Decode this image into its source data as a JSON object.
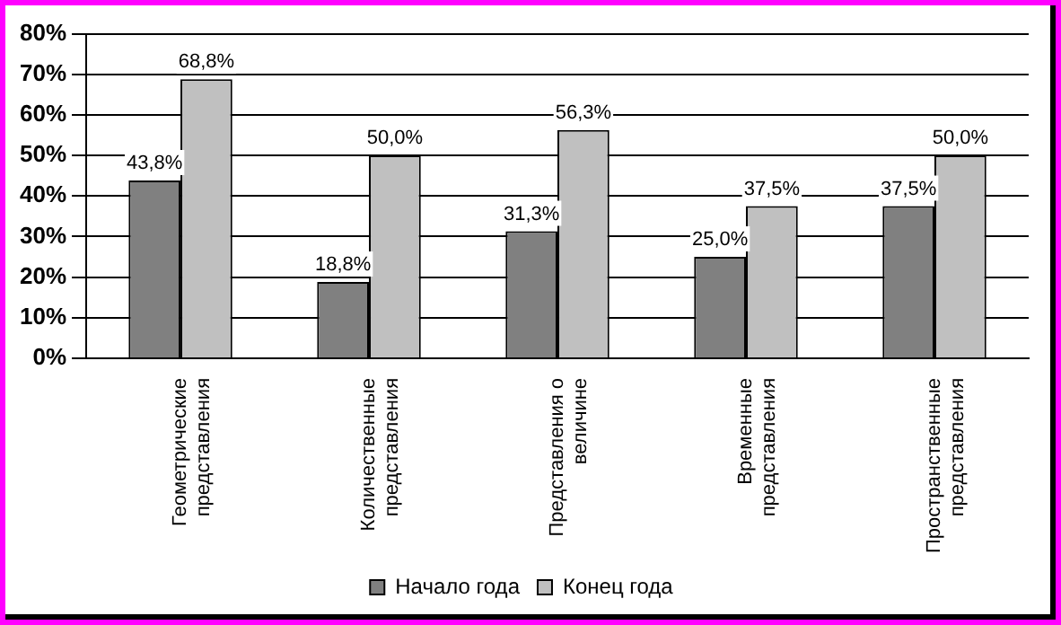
{
  "chart_data": {
    "type": "bar",
    "categories": [
      "Геометрические представления",
      "Количественные представления",
      "Представления о величине",
      "Временные представления",
      "Пространственные представления"
    ],
    "series": [
      {
        "name": "Начало года",
        "color": "#808080",
        "values": [
          43.8,
          18.8,
          31.3,
          25.0,
          37.5
        ],
        "value_labels": [
          "43,8%",
          "18,8%",
          "31,3%",
          "25,0%",
          "37,5%"
        ]
      },
      {
        "name": "Конец года",
        "color": "#c0c0c0",
        "values": [
          68.8,
          50.0,
          56.3,
          37.5,
          50.0
        ],
        "value_labels": [
          "68,8%",
          "50,0%",
          "56,3%",
          "37,5%",
          "50,0%"
        ]
      }
    ],
    "ylim": [
      0,
      80
    ],
    "yticks": [
      {
        "value": 0,
        "label": "0%"
      },
      {
        "value": 10,
        "label": "10%"
      },
      {
        "value": 20,
        "label": "20%"
      },
      {
        "value": 30,
        "label": "30%"
      },
      {
        "value": 40,
        "label": "40%"
      },
      {
        "value": 50,
        "label": "50%"
      },
      {
        "value": 60,
        "label": "60%"
      },
      {
        "value": 70,
        "label": "70%"
      },
      {
        "value": 80,
        "label": "80%"
      }
    ],
    "grid": "y",
    "legend": "bottom"
  }
}
